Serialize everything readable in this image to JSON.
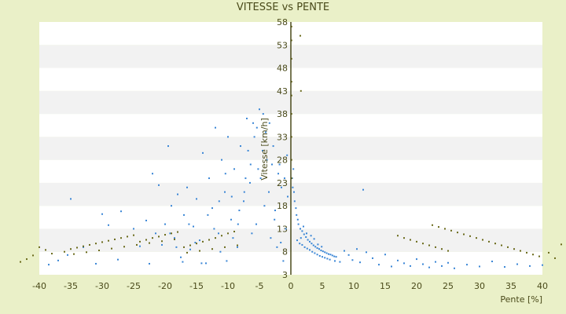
{
  "chart_data": {
    "type": "scatter",
    "title": "VITESSE vs PENTE",
    "xlabel": "Pente [%]",
    "ylabel": "Vitesse [km/h]",
    "xlim": [
      -40,
      40
    ],
    "ylim": [
      3,
      58
    ],
    "x_ticks": [
      -40,
      -35,
      -30,
      -25,
      -20,
      -15,
      -10,
      -5,
      0,
      5,
      10,
      15,
      20,
      25,
      30,
      35,
      40
    ],
    "y_ticks": [
      3,
      8,
      13,
      18,
      23,
      28,
      33,
      38,
      43,
      48,
      53,
      58
    ],
    "grid": "alternating horizontal bands",
    "legend": "none",
    "colors": {
      "background": "#eaf0c8",
      "plot_band_light": "#ffffff",
      "plot_band_dark": "#f2f2f2",
      "main_series": "#3a86d6",
      "secondary_series": "#6a6a1a",
      "axis": "#4a4a1a"
    },
    "series": [
      {
        "color": "#3a86d6",
        "points": [
          [
            -38.5,
            5.2
          ],
          [
            -37,
            6.1
          ],
          [
            -35.5,
            7.3
          ],
          [
            -35,
            19.5
          ],
          [
            -33,
            9
          ],
          [
            -31,
            5.4
          ],
          [
            -30,
            16.2
          ],
          [
            -29,
            13.8
          ],
          [
            -27.5,
            6.3
          ],
          [
            -27,
            16.8
          ],
          [
            -25,
            13
          ],
          [
            -24,
            9.2
          ],
          [
            -23,
            14.8
          ],
          [
            -22.5,
            5.4
          ],
          [
            -22,
            25
          ],
          [
            -21.5,
            12
          ],
          [
            -21,
            22.5
          ],
          [
            -20.5,
            9.5
          ],
          [
            -20,
            14
          ],
          [
            -19.5,
            31
          ],
          [
            -19,
            18
          ],
          [
            -18.5,
            11
          ],
          [
            -18,
            20.5
          ],
          [
            -17.5,
            6.8
          ],
          [
            -17,
            16
          ],
          [
            -16.5,
            22
          ],
          [
            -16,
            8.5
          ],
          [
            -15.5,
            13.5
          ],
          [
            -15,
            19.5
          ],
          [
            -14.5,
            10.5
          ],
          [
            -14,
            29.5
          ],
          [
            -13.5,
            5.5
          ],
          [
            -13,
            24
          ],
          [
            -12.5,
            17.5
          ],
          [
            -12,
            35
          ],
          [
            -11.5,
            12
          ],
          [
            -11,
            28
          ],
          [
            -10.5,
            21
          ],
          [
            -10,
            33
          ],
          [
            -9.5,
            15
          ],
          [
            -9,
            26
          ],
          [
            -8.5,
            9
          ],
          [
            -8,
            31
          ],
          [
            -7.5,
            19
          ],
          [
            -7,
            37
          ],
          [
            -6.5,
            23
          ],
          [
            -6,
            36
          ],
          [
            -5.5,
            14
          ],
          [
            -5,
            39
          ],
          [
            -4.5,
            30
          ],
          [
            -4,
            34
          ],
          [
            -3.5,
            21
          ],
          [
            -3,
            27
          ],
          [
            -2.5,
            17
          ],
          [
            -2,
            25
          ],
          [
            -1.5,
            22
          ],
          [
            -1,
            24
          ],
          [
            -0.5,
            20
          ],
          [
            -1.2,
            6
          ],
          [
            -2.2,
            9
          ],
          [
            -3.2,
            11
          ],
          [
            -0.8,
            13
          ],
          [
            -1.6,
            10
          ],
          [
            -2.6,
            15
          ],
          [
            -4.2,
            18
          ],
          [
            -5.2,
            26
          ],
          [
            -6.2,
            12
          ],
          [
            -7.2,
            24
          ],
          [
            -8.2,
            17
          ],
          [
            -9.2,
            11
          ],
          [
            -10.2,
            6
          ],
          [
            -11.2,
            8
          ],
          [
            -12.2,
            13
          ],
          [
            -13.2,
            16
          ],
          [
            -14.2,
            5.5
          ],
          [
            -15.2,
            10
          ],
          [
            -16.2,
            14
          ],
          [
            -17.2,
            5.8
          ],
          [
            -18.2,
            9
          ],
          [
            -19.2,
            12
          ],
          [
            -6.8,
            30
          ],
          [
            -5.8,
            33
          ],
          [
            -4.8,
            24
          ],
          [
            -3.8,
            28
          ],
          [
            -2.8,
            31
          ],
          [
            -1.8,
            27
          ],
          [
            -0.6,
            29
          ],
          [
            -3.4,
            36
          ],
          [
            -4.4,
            38
          ],
          [
            -5.4,
            35
          ],
          [
            -6.4,
            27
          ],
          [
            -7.4,
            21
          ],
          [
            -8.4,
            14
          ],
          [
            -9.4,
            20
          ],
          [
            -10.4,
            25
          ],
          [
            -11.4,
            19
          ],
          [
            0.3,
            22
          ],
          [
            0.6,
            19
          ],
          [
            0.9,
            16
          ],
          [
            1.2,
            14
          ],
          [
            1.5,
            13
          ],
          [
            1.8,
            12.5
          ],
          [
            2.1,
            11.8
          ],
          [
            2.4,
            11.2
          ],
          [
            2.7,
            10.6
          ],
          [
            3.0,
            10.2
          ],
          [
            3.3,
            9.8
          ],
          [
            3.6,
            9.4
          ],
          [
            3.9,
            9.1
          ],
          [
            4.2,
            8.8
          ],
          [
            4.5,
            8.6
          ],
          [
            4.8,
            8.3
          ],
          [
            5.1,
            8.1
          ],
          [
            5.4,
            7.9
          ],
          [
            5.7,
            7.7
          ],
          [
            6.0,
            7.5
          ],
          [
            6.3,
            7.4
          ],
          [
            6.6,
            7.2
          ],
          [
            6.9,
            7.0
          ],
          [
            7.2,
            6.9
          ],
          [
            1.0,
            10.5
          ],
          [
            1.4,
            9.8
          ],
          [
            1.8,
            9.5
          ],
          [
            2.2,
            9.0
          ],
          [
            2.6,
            8.7
          ],
          [
            3.0,
            8.4
          ],
          [
            3.4,
            8.0
          ],
          [
            3.8,
            7.7
          ],
          [
            4.2,
            7.4
          ],
          [
            4.6,
            7.1
          ],
          [
            5.0,
            6.9
          ],
          [
            5.4,
            6.7
          ],
          [
            5.8,
            6.5
          ],
          [
            6.2,
            6.3
          ],
          [
            7.0,
            6.0
          ],
          [
            7.8,
            5.8
          ],
          [
            8.5,
            8.2
          ],
          [
            9.2,
            7.3
          ],
          [
            9.8,
            6.2
          ],
          [
            10.5,
            8.6
          ],
          [
            11,
            5.7
          ],
          [
            11.5,
            21.5
          ],
          [
            12,
            7.9
          ],
          [
            13,
            6.6
          ],
          [
            14,
            5.2
          ],
          [
            15,
            7.4
          ],
          [
            16,
            4.8
          ],
          [
            17,
            6.1
          ],
          [
            18,
            5.5
          ],
          [
            19,
            4.9
          ],
          [
            20,
            6.4
          ],
          [
            21,
            5.3
          ],
          [
            22,
            4.6
          ],
          [
            23,
            5.8
          ],
          [
            24,
            4.9
          ],
          [
            25,
            5.6
          ],
          [
            26,
            4.4
          ],
          [
            28,
            5.2
          ],
          [
            30,
            4.8
          ],
          [
            32,
            5.9
          ],
          [
            34,
            4.7
          ],
          [
            36,
            5.3
          ],
          [
            38,
            4.9
          ],
          [
            40,
            5.1
          ],
          [
            0.4,
            26
          ],
          [
            0.2,
            24
          ],
          [
            0.5,
            21
          ],
          [
            0.8,
            17.5
          ],
          [
            1.1,
            15
          ],
          [
            1.6,
            11
          ],
          [
            2.0,
            13.5
          ],
          [
            2.5,
            12
          ],
          [
            3.2,
            11.5
          ],
          [
            3.7,
            10.8
          ],
          [
            4.3,
            9.6
          ],
          [
            4.9,
            9.1
          ]
        ]
      },
      {
        "color": "#6a6a1a",
        "points": [
          [
            -43,
            5.8
          ],
          [
            -42,
            6.4
          ],
          [
            -41,
            7.2
          ],
          [
            -40,
            9
          ],
          [
            -39,
            8.4
          ],
          [
            -38,
            7.6
          ],
          [
            -36,
            8.0
          ],
          [
            -35,
            8.6
          ],
          [
            -34,
            8.9
          ],
          [
            -33,
            9.2
          ],
          [
            -32,
            9.5
          ],
          [
            -31,
            9.8
          ],
          [
            -30,
            10.1
          ],
          [
            -29,
            10.4
          ],
          [
            -28,
            10.7
          ],
          [
            -27,
            11.0
          ],
          [
            -26,
            11.3
          ],
          [
            -25,
            11.6
          ],
          [
            -24,
            10.2
          ],
          [
            -23,
            10.6
          ],
          [
            -22,
            11.0
          ],
          [
            -21,
            11.3
          ],
          [
            -20,
            11.7
          ],
          [
            -19,
            12.0
          ],
          [
            -18,
            12.3
          ],
          [
            -17,
            9.0
          ],
          [
            -16,
            9.4
          ],
          [
            -15,
            9.8
          ],
          [
            -14,
            10.2
          ],
          [
            -13,
            10.6
          ],
          [
            -12,
            11.0
          ],
          [
            -11,
            11.5
          ],
          [
            -10,
            12.0
          ],
          [
            -9,
            12.4
          ],
          [
            -34.5,
            7.5
          ],
          [
            -32.5,
            7.9
          ],
          [
            -30.5,
            8.3
          ],
          [
            -28.5,
            8.7
          ],
          [
            -26.5,
            9.1
          ],
          [
            -24.5,
            9.5
          ],
          [
            -22.5,
            9.9
          ],
          [
            -20.5,
            10.3
          ],
          [
            -18.5,
            10.7
          ],
          [
            -16.5,
            7.8
          ],
          [
            -14.5,
            8.2
          ],
          [
            -12.5,
            8.6
          ],
          [
            -10.5,
            9.0
          ],
          [
            -8.5,
            9.4
          ],
          [
            0.1,
            57
          ],
          [
            0.1,
            54
          ],
          [
            0.1,
            50
          ],
          [
            0.1,
            45
          ],
          [
            0.1,
            42
          ],
          [
            0.1,
            38
          ],
          [
            0.1,
            33
          ],
          [
            0.1,
            28
          ],
          [
            0.1,
            24
          ],
          [
            1.5,
            55
          ],
          [
            1.6,
            43
          ],
          [
            17,
            11.5
          ],
          [
            18,
            11.0
          ],
          [
            19,
            10.6
          ],
          [
            20,
            10.2
          ],
          [
            21,
            9.8
          ],
          [
            22,
            9.4
          ],
          [
            23,
            9.0
          ],
          [
            24,
            8.6
          ],
          [
            25,
            8.2
          ],
          [
            22.5,
            13.8
          ],
          [
            23.5,
            13.4
          ],
          [
            24.5,
            13.0
          ],
          [
            25.5,
            12.6
          ],
          [
            26.5,
            12.2
          ],
          [
            27.5,
            11.8
          ],
          [
            28.5,
            11.4
          ],
          [
            29.5,
            11.0
          ],
          [
            30.5,
            10.6
          ],
          [
            31.5,
            10.2
          ],
          [
            32.5,
            9.8
          ],
          [
            33.5,
            9.4
          ],
          [
            34.5,
            9.0
          ],
          [
            35.5,
            8.6
          ],
          [
            36.5,
            8.2
          ],
          [
            37.5,
            7.8
          ],
          [
            38.5,
            7.4
          ],
          [
            39.5,
            7.0
          ],
          [
            41,
            7.8
          ],
          [
            42,
            6.6
          ],
          [
            43,
            9.6
          ]
        ]
      }
    ]
  }
}
